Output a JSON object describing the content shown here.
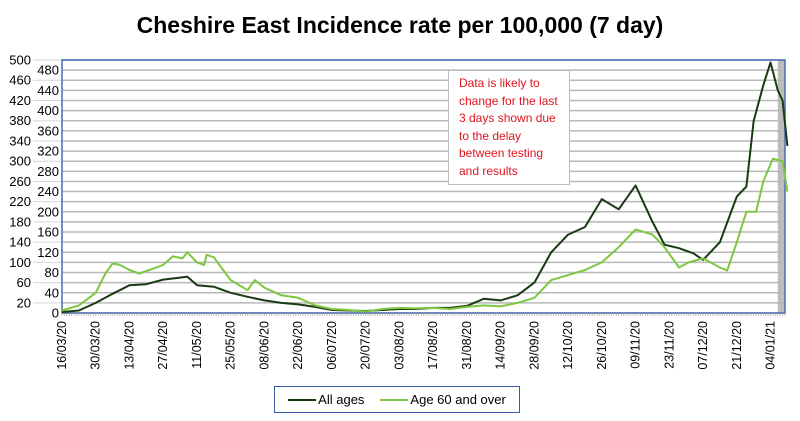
{
  "chart_data": {
    "type": "line",
    "title": "Cheshire East Incidence rate per 100,000 (7 day)",
    "xlabel": "",
    "ylabel": "",
    "ylim": [
      0,
      500
    ],
    "yticks": [
      0,
      20,
      40,
      60,
      80,
      100,
      120,
      140,
      160,
      180,
      200,
      220,
      240,
      260,
      280,
      300,
      320,
      340,
      360,
      380,
      400,
      420,
      440,
      460,
      480,
      500
    ],
    "x_unit": "days since 16/03/20",
    "xlim": [
      0,
      300
    ],
    "xtick_labels": [
      "16/03/20",
      "30/03/20",
      "13/04/20",
      "27/04/20",
      "11/05/20",
      "25/05/20",
      "08/06/20",
      "22/06/20",
      "06/07/20",
      "20/07/20",
      "03/08/20",
      "17/08/20",
      "31/08/20",
      "14/09/20",
      "28/09/20",
      "12/10/20",
      "26/10/20",
      "09/11/20",
      "23/11/20",
      "07/12/20",
      "21/12/20",
      "04/01/21"
    ],
    "xtick_step_days": 14,
    "grid": true,
    "legend_placement": "bottom",
    "shaded_last_days": 3,
    "annotation": "Data is likely to change  for the last  3 days shown due to the delay between testing and results",
    "series": [
      {
        "name": "All ages",
        "color": "#1a3a14",
        "x": [
          0,
          7,
          14,
          21,
          28,
          35,
          42,
          49,
          52,
          56,
          63,
          70,
          77,
          84,
          91,
          98,
          105,
          112,
          119,
          126,
          133,
          140,
          147,
          154,
          161,
          168,
          175,
          182,
          189,
          196,
          203,
          210,
          217,
          224,
          231,
          238,
          245,
          250,
          256,
          262,
          266,
          273,
          280,
          284,
          287,
          291,
          294,
          297,
          299,
          301
        ],
        "y": [
          2,
          5,
          20,
          38,
          55,
          57,
          66,
          70,
          72,
          55,
          52,
          40,
          32,
          25,
          20,
          17,
          12,
          6,
          5,
          4,
          6,
          8,
          8,
          10,
          10,
          14,
          28,
          25,
          35,
          60,
          120,
          155,
          170,
          225,
          205,
          252,
          180,
          135,
          128,
          118,
          105,
          140,
          230,
          250,
          380,
          450,
          495,
          440,
          420,
          330
        ]
      },
      {
        "name": "Age 60 and over",
        "color": "#7dc742",
        "x": [
          0,
          7,
          14,
          18,
          21,
          24,
          28,
          32,
          38,
          42,
          46,
          50,
          52,
          56,
          59,
          60,
          63,
          70,
          77,
          80,
          84,
          91,
          98,
          105,
          112,
          119,
          126,
          133,
          140,
          147,
          154,
          161,
          168,
          175,
          182,
          189,
          196,
          203,
          210,
          217,
          224,
          231,
          238,
          245,
          250,
          256,
          260,
          266,
          273,
          276,
          280,
          284,
          288,
          291,
          295,
          299,
          301
        ],
        "y": [
          5,
          15,
          40,
          78,
          98,
          95,
          85,
          78,
          88,
          95,
          112,
          108,
          120,
          100,
          95,
          115,
          110,
          65,
          45,
          65,
          50,
          35,
          30,
          15,
          8,
          6,
          3,
          8,
          10,
          9,
          10,
          8,
          12,
          15,
          13,
          20,
          30,
          65,
          75,
          85,
          100,
          130,
          165,
          155,
          130,
          90,
          100,
          108,
          90,
          84,
          140,
          200,
          200,
          260,
          305,
          300,
          240
        ]
      }
    ]
  }
}
